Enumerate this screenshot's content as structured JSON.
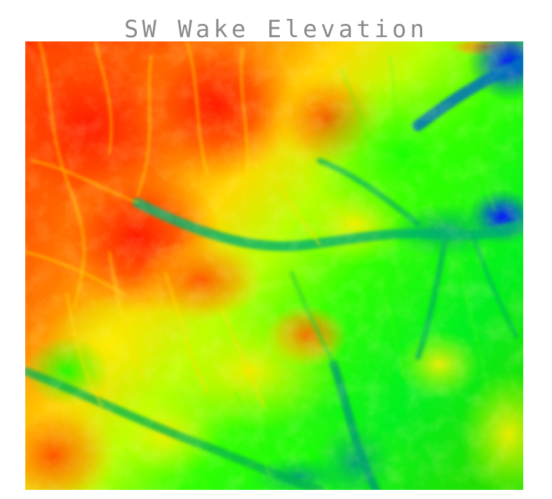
{
  "map": {
    "title": "SW Wake Elevation",
    "color_ramp": [
      "#0000ff",
      "#00a0a0",
      "#00ff00",
      "#ffff00",
      "#ff8c00",
      "#ff2000"
    ]
  }
}
